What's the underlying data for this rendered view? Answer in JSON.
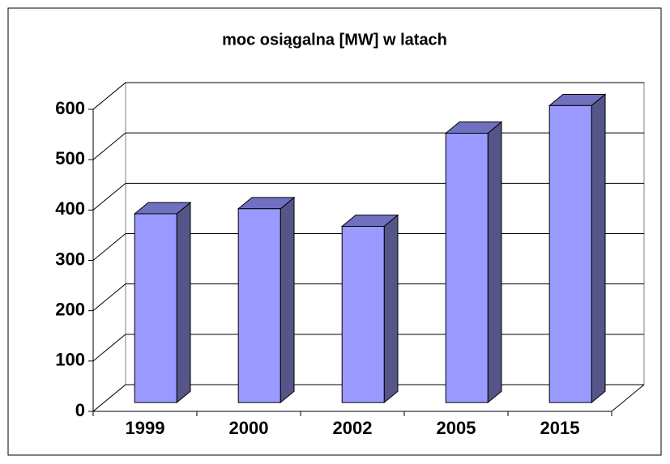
{
  "chart_data": {
    "type": "bar3d",
    "title": "moc osiągalna [MW] w latach",
    "categories": [
      "1999",
      "2000",
      "2002",
      "2005",
      "2015"
    ],
    "values": [
      375,
      385,
      350,
      535,
      590
    ],
    "color": "#9999ff",
    "ylim": [
      0,
      600
    ],
    "yticks": [
      0,
      100,
      200,
      300,
      400,
      500,
      600
    ],
    "grid": true
  }
}
